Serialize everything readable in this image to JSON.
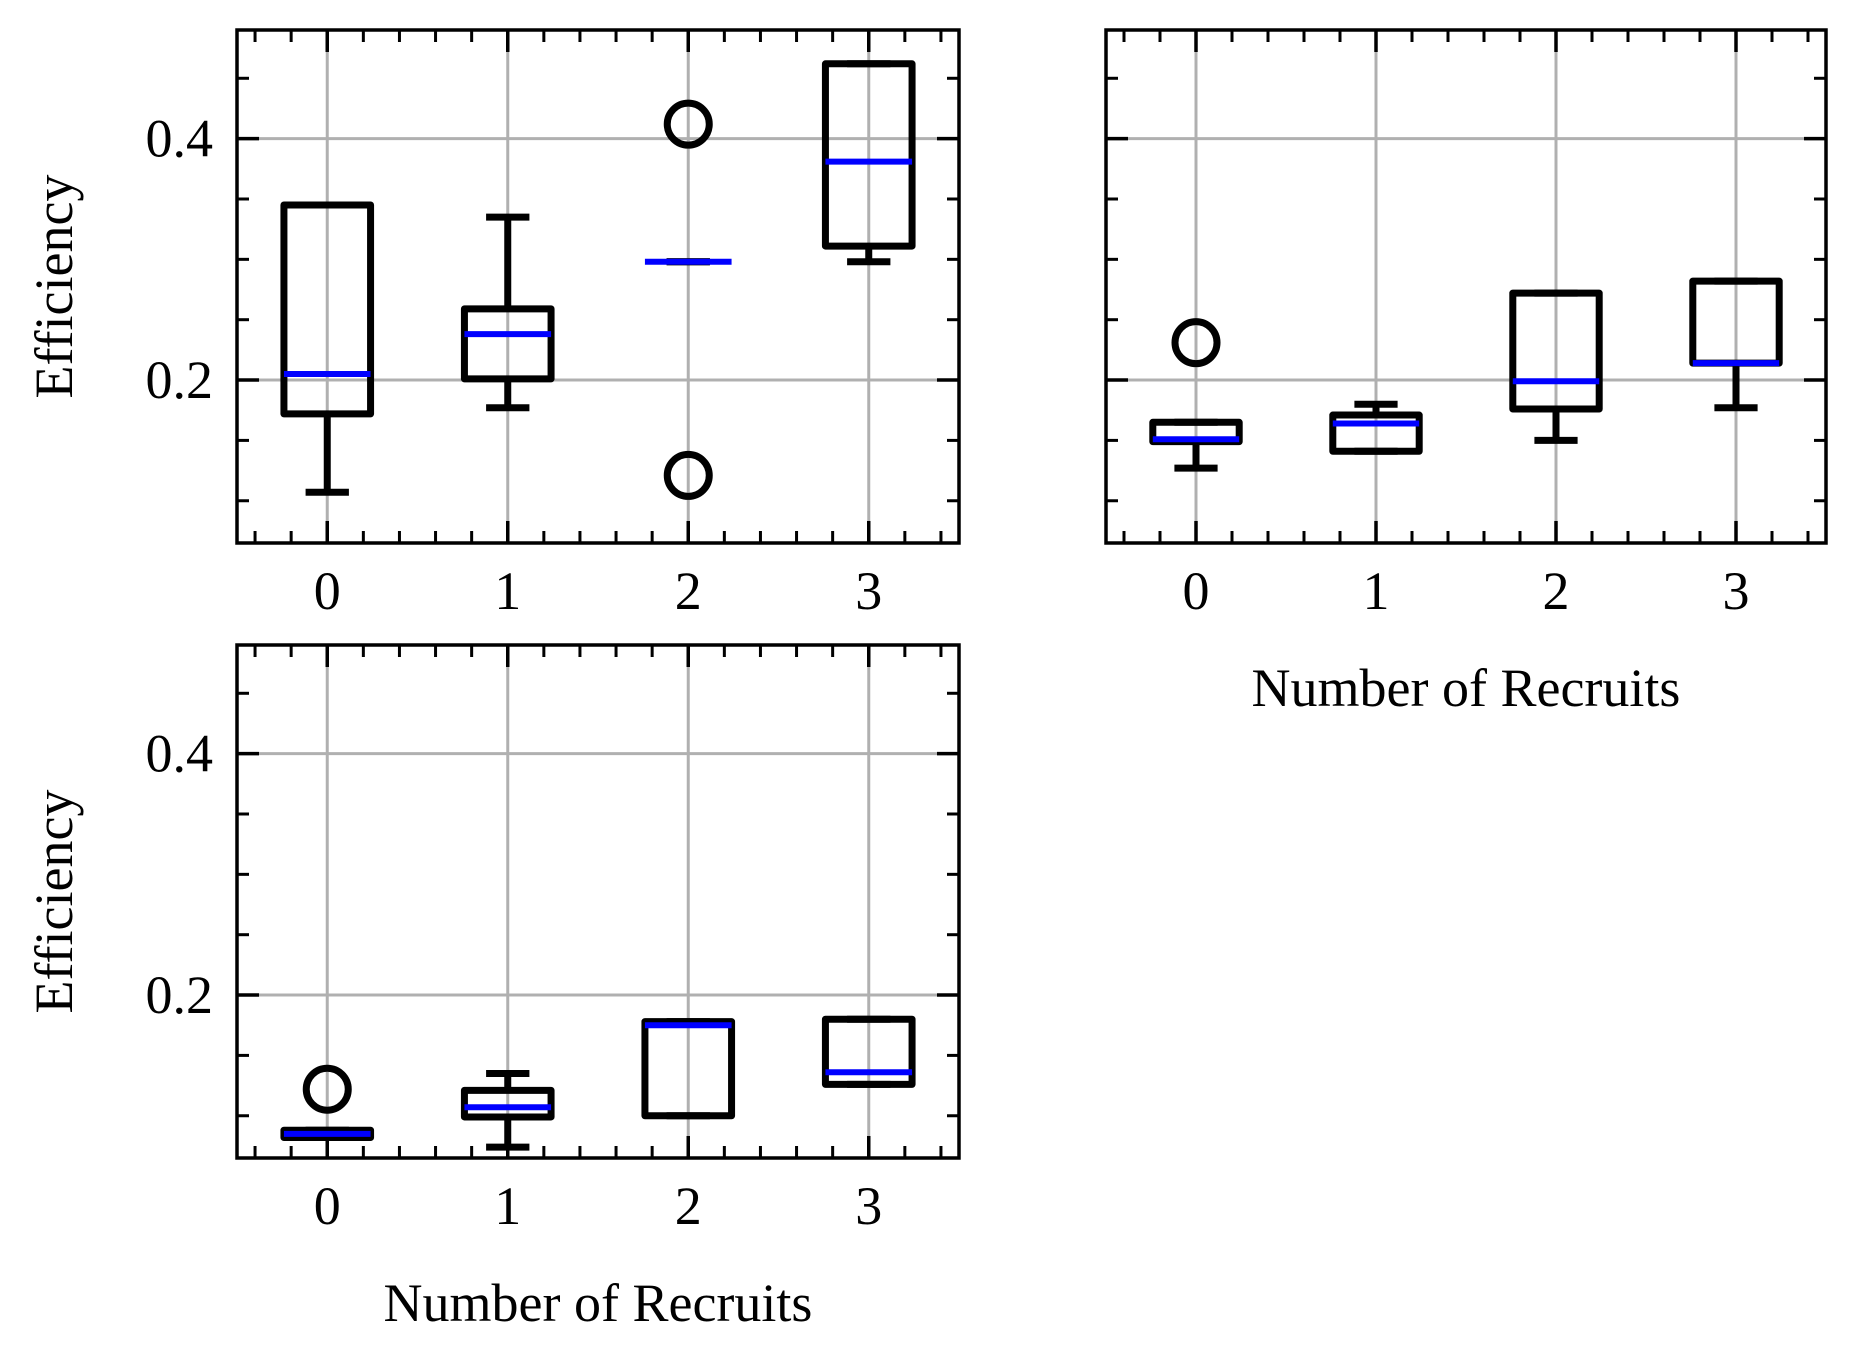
{
  "chart_data": [
    {
      "type": "box",
      "panel": "top-left",
      "categories": [
        "0",
        "1",
        "2",
        "3"
      ],
      "ylabel": "Efficiency",
      "xlabel": "",
      "y_tick_labels": [
        "0.2",
        "0.4"
      ],
      "ylim": [
        0.065,
        0.49
      ],
      "grid": true,
      "boxes": [
        {
          "whislo": 0.107,
          "q1": 0.172,
          "med": 0.205,
          "q3": 0.345,
          "whishi": 0.345,
          "fliers": []
        },
        {
          "whislo": 0.177,
          "q1": 0.201,
          "med": 0.238,
          "q3": 0.259,
          "whishi": 0.335,
          "fliers": []
        },
        {
          "whislo": 0.298,
          "q1": 0.298,
          "med": 0.298,
          "q3": 0.298,
          "whishi": 0.298,
          "fliers": [
            0.412,
            0.121
          ]
        },
        {
          "whislo": 0.298,
          "q1": 0.311,
          "med": 0.381,
          "q3": 0.462,
          "whishi": 0.462,
          "fliers": []
        }
      ]
    },
    {
      "type": "box",
      "panel": "top-right",
      "categories": [
        "0",
        "1",
        "2",
        "3"
      ],
      "ylabel": "",
      "xlabel": "Number of Recruits",
      "y_tick_labels": [],
      "ylim": [
        0.065,
        0.49
      ],
      "grid": true,
      "boxes": [
        {
          "whislo": 0.127,
          "q1": 0.149,
          "med": 0.151,
          "q3": 0.165,
          "whishi": 0.165,
          "fliers": [
            0.231
          ]
        },
        {
          "whislo": 0.141,
          "q1": 0.141,
          "med": 0.164,
          "q3": 0.171,
          "whishi": 0.18,
          "fliers": []
        },
        {
          "whislo": 0.15,
          "q1": 0.176,
          "med": 0.199,
          "q3": 0.272,
          "whishi": 0.272,
          "fliers": []
        },
        {
          "whislo": 0.177,
          "q1": 0.214,
          "med": 0.214,
          "q3": 0.282,
          "whishi": 0.282,
          "fliers": []
        }
      ]
    },
    {
      "type": "box",
      "panel": "bottom-left",
      "categories": [
        "0",
        "1",
        "2",
        "3"
      ],
      "ylabel": "Efficiency",
      "xlabel": "Number of Recruits",
      "y_tick_labels": [
        "0.2",
        "0.4"
      ],
      "ylim": [
        0.065,
        0.49
      ],
      "grid": true,
      "boxes": [
        {
          "whislo": 0.082,
          "q1": 0.082,
          "med": 0.085,
          "q3": 0.088,
          "whishi": 0.088,
          "fliers": [
            0.122
          ]
        },
        {
          "whislo": 0.074,
          "q1": 0.099,
          "med": 0.107,
          "q3": 0.121,
          "whishi": 0.135,
          "fliers": []
        },
        {
          "whislo": 0.1,
          "q1": 0.1,
          "med": 0.175,
          "q3": 0.178,
          "whishi": 0.178,
          "fliers": []
        },
        {
          "whislo": 0.126,
          "q1": 0.126,
          "med": 0.136,
          "q3": 0.18,
          "whishi": 0.18,
          "fliers": []
        }
      ]
    }
  ],
  "colors": {
    "box": "#000000",
    "median": "#0000ff",
    "grid": "#b0b0b0",
    "background": "#ffffff"
  }
}
